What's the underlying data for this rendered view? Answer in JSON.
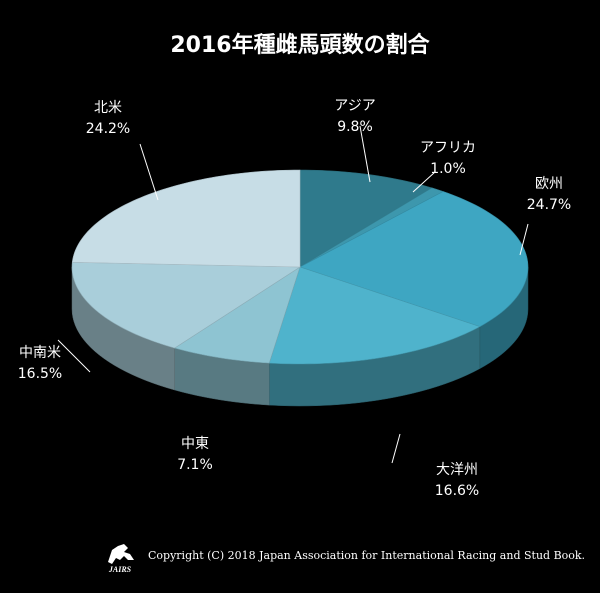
{
  "chart_data": {
    "type": "pie",
    "title": "2016年種雌馬頭数の割合",
    "style": "3d",
    "categories": [
      "アジア",
      "アフリカ",
      "欧州",
      "大洋州",
      "中東",
      "中南米",
      "北米"
    ],
    "values": [
      9.8,
      1.0,
      24.7,
      16.6,
      7.1,
      16.5,
      24.2
    ],
    "value_labels": [
      "9.8%",
      "1.0%",
      "24.7%",
      "16.6%",
      "7.1%",
      "16.5%",
      "24.2%"
    ],
    "colors": [
      "#2f7a8c",
      "#3d97ad",
      "#3ea6c2",
      "#4fb3cc",
      "#8ec4d2",
      "#a9ceda",
      "#c7dde6"
    ]
  },
  "footer": {
    "copyright": "Copyright (C) 2018 Japan Association for International Racing and Stud Book.",
    "logo_text": "JAIRS"
  }
}
